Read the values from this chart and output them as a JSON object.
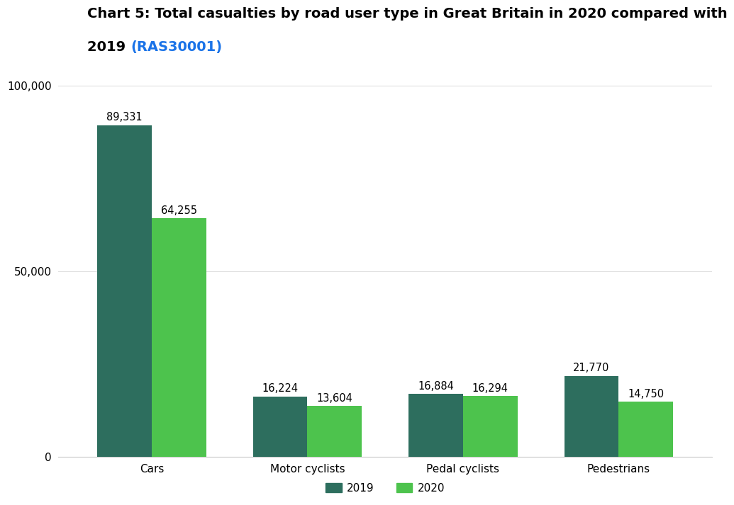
{
  "title_line1": "Chart 5: Total casualties by road user type in Great Britain in 2020 compared with",
  "title_line2_black": "2019 ",
  "title_link": "(RAS30001)",
  "categories": [
    "Cars",
    "Motor cyclists",
    "Pedal cyclists",
    "Pedestrians"
  ],
  "values_2019": [
    89331,
    16224,
    16884,
    21770
  ],
  "values_2020": [
    64255,
    13604,
    16294,
    14750
  ],
  "labels_2019": [
    "89,331",
    "16,224",
    "16,884",
    "21,770"
  ],
  "labels_2020": [
    "64,255",
    "13,604",
    "16,294",
    "14,750"
  ],
  "color_2019": "#2d6e5e",
  "color_2020": "#4dc34d",
  "bar_width": 0.35,
  "ylim": [
    0,
    105000
  ],
  "ytick_labels": [
    "0",
    "50,000",
    "100,000"
  ],
  "ytick_vals": [
    0,
    50000,
    100000
  ],
  "legend_labels": [
    "2019",
    "2020"
  ],
  "background_color": "#ffffff",
  "grid_color": "#e0e0e0",
  "title_fontsize": 14,
  "label_fontsize": 10.5,
  "tick_fontsize": 11,
  "link_color": "#1a73e8"
}
